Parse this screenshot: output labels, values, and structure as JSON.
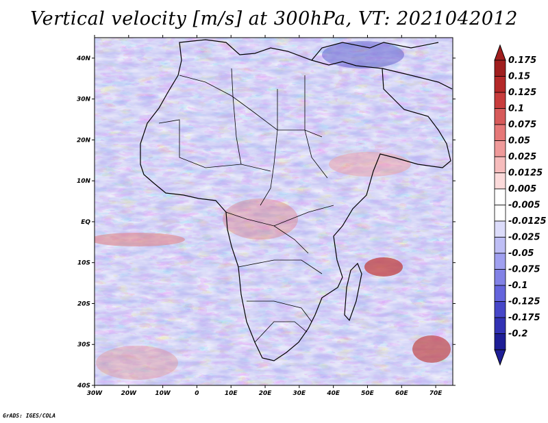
{
  "title": "Vertical velocity [m/s] at 300hPa, VT: 2021042012",
  "footer": "GrADS: IGES/COLA",
  "map": {
    "lon_range": [
      -30,
      75
    ],
    "lat_range": [
      -40,
      45
    ],
    "lon_ticks": [
      {
        "value": -30,
        "label": "30W"
      },
      {
        "value": -20,
        "label": "20W"
      },
      {
        "value": -10,
        "label": "10W"
      },
      {
        "value": 0,
        "label": "0"
      },
      {
        "value": 10,
        "label": "10E"
      },
      {
        "value": 20,
        "label": "20E"
      },
      {
        "value": 30,
        "label": "30E"
      },
      {
        "value": 40,
        "label": "40E"
      },
      {
        "value": 50,
        "label": "50E"
      },
      {
        "value": 60,
        "label": "60E"
      },
      {
        "value": 70,
        "label": "70E"
      }
    ],
    "lat_ticks": [
      {
        "value": 40,
        "label": "40N"
      },
      {
        "value": 30,
        "label": "30N"
      },
      {
        "value": 20,
        "label": "20N"
      },
      {
        "value": 10,
        "label": "10N"
      },
      {
        "value": 0,
        "label": "EQ"
      },
      {
        "value": -10,
        "label": "10S"
      },
      {
        "value": -20,
        "label": "20S"
      },
      {
        "value": -30,
        "label": "30S"
      },
      {
        "value": -40,
        "label": "40S"
      }
    ]
  },
  "colorbar": {
    "levels": [
      {
        "label": "0.175",
        "color": "#a01e1e"
      },
      {
        "label": "0.15",
        "color": "#b42828"
      },
      {
        "label": "0.125",
        "color": "#c83c3c"
      },
      {
        "label": "0.1",
        "color": "#d75a5a"
      },
      {
        "label": "0.075",
        "color": "#e67878"
      },
      {
        "label": "0.05",
        "color": "#ef9a9a"
      },
      {
        "label": "0.025",
        "color": "#f6bcbc"
      },
      {
        "label": "0.0125",
        "color": "#fbdada"
      },
      {
        "label": "0.005",
        "color": "#ffffff"
      },
      {
        "label": "-0.005",
        "color": "#ffffff"
      },
      {
        "label": "-0.0125",
        "color": "#dcdcfa"
      },
      {
        "label": "-0.025",
        "color": "#bebef5"
      },
      {
        "label": "-0.05",
        "color": "#a0a0f0"
      },
      {
        "label": "-0.075",
        "color": "#8282e6"
      },
      {
        "label": "-0.1",
        "color": "#6464dc"
      },
      {
        "label": "-0.125",
        "color": "#4646c8"
      },
      {
        "label": "-0.175",
        "color": "#3232b4"
      },
      {
        "label": "-0.2",
        "color": "#1e1e96"
      }
    ],
    "top_color": "#a01e1e",
    "bottom_color": "#1e1e96"
  }
}
